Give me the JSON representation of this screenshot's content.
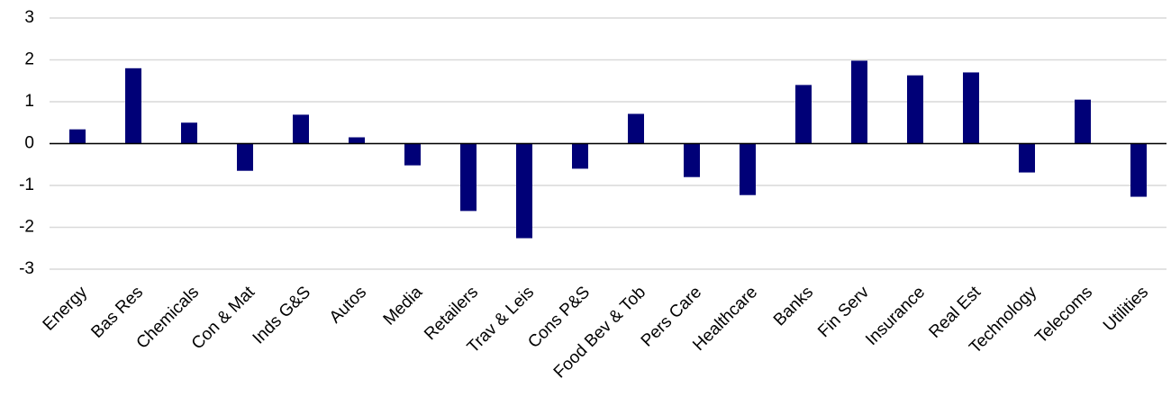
{
  "chart_data": {
    "type": "bar",
    "categories": [
      "Energy",
      "Bas Res",
      "Chemicals",
      "Con & Mat",
      "Inds G&S",
      "Autos",
      "Media",
      "Retailers",
      "Trav & Leis",
      "Cons P&S",
      "Food Bev & Tob",
      "Pers Care",
      "Healthcare",
      "Banks",
      "Fin Serv",
      "Insurance",
      "Real Est",
      "Technology",
      "Telecoms",
      "Utilities"
    ],
    "values": [
      0.34,
      1.8,
      0.5,
      -0.65,
      0.69,
      0.15,
      -0.52,
      -1.61,
      -2.26,
      -0.6,
      0.71,
      -0.8,
      -1.23,
      1.4,
      1.98,
      1.63,
      1.7,
      -0.69,
      1.05,
      -1.27
    ],
    "color": "#000077",
    "ylim": [
      -3,
      3
    ],
    "yticks": [
      -3,
      -2,
      -1,
      0,
      1,
      2,
      3
    ],
    "grid": true
  }
}
